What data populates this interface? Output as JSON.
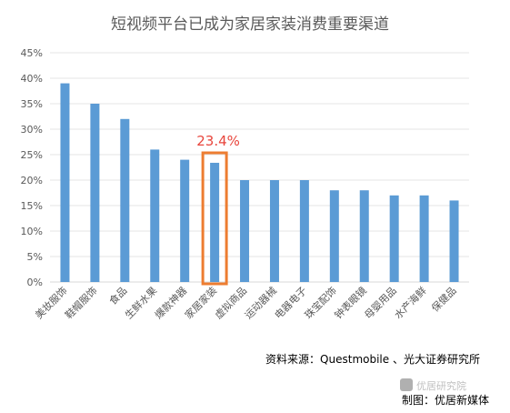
{
  "chart_data": {
    "type": "bar",
    "title": "短视频平台已成为家居家装消费重要渠道",
    "xlabel": "",
    "ylabel": "",
    "ylim": [
      0,
      0.45
    ],
    "yticks": [
      "0%",
      "5%",
      "10%",
      "15%",
      "20%",
      "25%",
      "30%",
      "35%",
      "40%",
      "45%"
    ],
    "grid": true,
    "categories": [
      "美妆服饰",
      "鞋帽服饰",
      "食品",
      "生鲜水果",
      "爆款神器",
      "家居家装",
      "虚拟商品",
      "运动器械",
      "电器电子",
      "珠宝配饰",
      "钟表眼镜",
      "母婴用品",
      "水产海鲜",
      "保健品"
    ],
    "values": [
      0.39,
      0.35,
      0.32,
      0.26,
      0.24,
      0.234,
      0.2,
      0.2,
      0.2,
      0.18,
      0.18,
      0.17,
      0.17,
      0.16
    ],
    "highlight": {
      "category": "家居家装",
      "label": "23.4%",
      "color": "#e8453c",
      "box_color": "#ed7d31"
    },
    "bar_color": "#5b9bd5",
    "source_note": "资料来源：Questmobile 、光大证券研究所",
    "watermark": "优居研究院",
    "credit": "制图：优居新媒体"
  }
}
